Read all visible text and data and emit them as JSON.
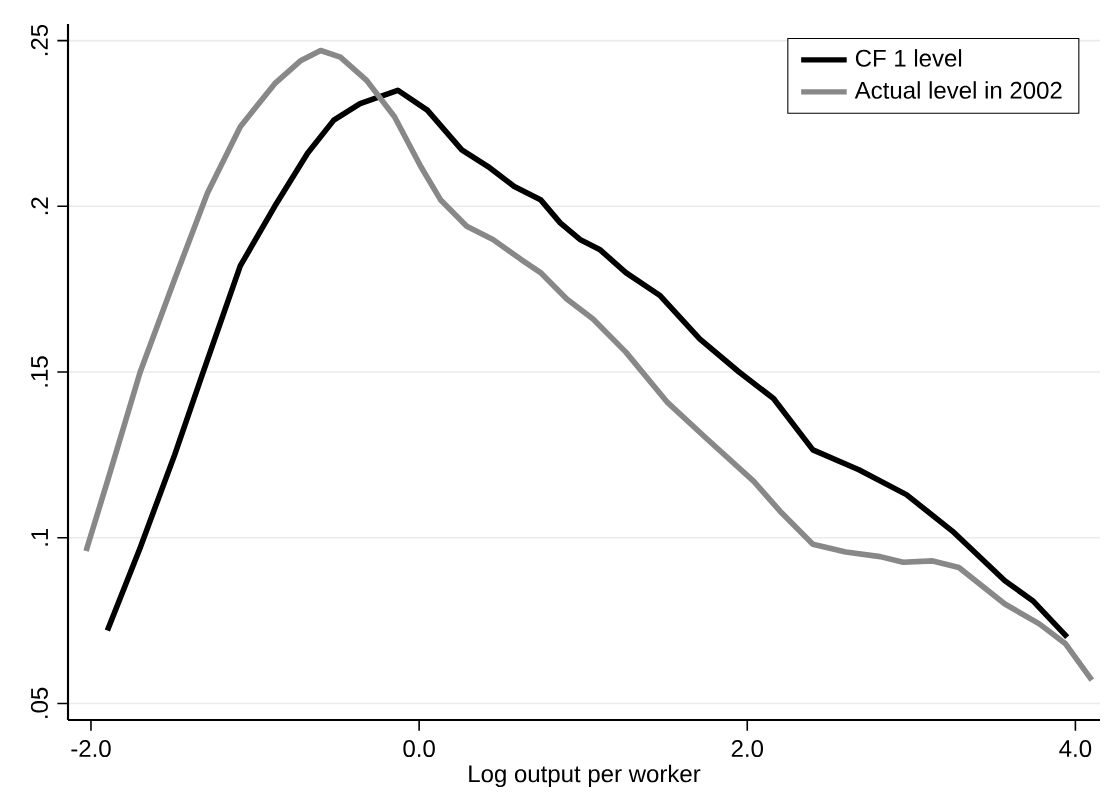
{
  "chart_data": {
    "type": "line",
    "xlabel": "Log output per worker",
    "xlim": [
      -2.14,
      4.15
    ],
    "ylim": [
      0.045,
      0.255
    ],
    "xticks": [
      {
        "value": -2,
        "label": "-2.0"
      },
      {
        "value": 0,
        "label": "0.0"
      },
      {
        "value": 2,
        "label": "2.0"
      },
      {
        "value": 4,
        "label": "4.0"
      }
    ],
    "yticks": [
      {
        "value": 0.05,
        "label": ".05"
      },
      {
        "value": 0.1,
        "label": ".1"
      },
      {
        "value": 0.15,
        "label": ".15"
      },
      {
        "value": 0.2,
        "label": ".2"
      },
      {
        "value": 0.25,
        "label": ".25"
      }
    ],
    "grid": "y",
    "legend": "top right",
    "series": [
      {
        "name": "CF 1 level",
        "color": "#000000",
        "x": [
          -1.9,
          -1.7,
          -1.49,
          -1.33,
          -1.09,
          -0.88,
          -0.68,
          -0.52,
          -0.36,
          -0.13,
          0.05,
          0.26,
          0.42,
          0.58,
          0.74,
          0.86,
          0.98,
          1.1,
          1.26,
          1.47,
          1.71,
          1.95,
          2.16,
          2.4,
          2.68,
          2.97,
          3.25,
          3.57,
          3.74,
          3.95
        ],
        "values": [
          0.072,
          0.097,
          0.125,
          0.148,
          0.182,
          0.2,
          0.216,
          0.226,
          0.231,
          0.235,
          0.229,
          0.217,
          0.212,
          0.206,
          0.202,
          0.195,
          0.19,
          0.187,
          0.18,
          0.173,
          0.16,
          0.15,
          0.142,
          0.1265,
          0.1205,
          0.113,
          0.102,
          0.087,
          0.081,
          0.07
        ]
      },
      {
        "name": "Actual level in 2002",
        "color": "#888888",
        "x": [
          -2.03,
          -1.9,
          -1.7,
          -1.49,
          -1.29,
          -1.09,
          -0.88,
          -0.72,
          -0.6,
          -0.48,
          -0.32,
          -0.15,
          0.01,
          0.13,
          0.29,
          0.45,
          0.62,
          0.74,
          0.9,
          1.06,
          1.26,
          1.51,
          1.75,
          2.04,
          2.2,
          2.4,
          2.6,
          2.81,
          2.95,
          3.13,
          3.29,
          3.57,
          3.78,
          3.94,
          4.1
        ],
        "values": [
          0.096,
          0.117,
          0.15,
          0.178,
          0.204,
          0.224,
          0.237,
          0.244,
          0.247,
          0.245,
          0.238,
          0.227,
          0.212,
          0.202,
          0.194,
          0.19,
          0.184,
          0.18,
          0.172,
          0.166,
          0.156,
          0.141,
          0.13,
          0.117,
          0.108,
          0.098,
          0.0957,
          0.0943,
          0.0926,
          0.093,
          0.091,
          0.08,
          0.074,
          0.068,
          0.057
        ]
      }
    ]
  }
}
